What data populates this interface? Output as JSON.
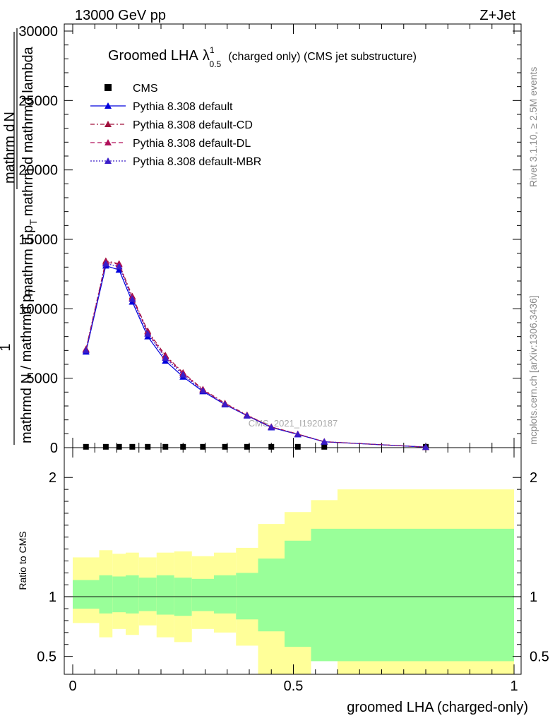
{
  "header": {
    "left": "13000 GeV pp",
    "right": "Z+Jet"
  },
  "side": {
    "rivet": "Rivet 3.1.10, ≥ 2.5M events",
    "mcplots": "mcplots.cern.ch [arXiv:1306.3436]"
  },
  "chart_data": [
    {
      "type": "line",
      "title": "Groomed LHA",
      "title_symbol": "λ",
      "title_sup": "1",
      "title_sub": "0.5",
      "title_suffix": "(charged only) (CMS jet substructure)",
      "watermark": "CMS_2021_I1920187",
      "ylabel_fraction_num": "1",
      "ylabel_denominator": "mathrmd N / mathrmd p",
      "ylabel_denominator_sub": "T",
      "ylabel_upper_num": "mathrm d",
      "ylabel_upper_num_tail": "N",
      "ylabel_upper_den": "mathrm d p",
      "ylabel_upper_den_sub": "T",
      "ylabel_upper_den_tail": "mathrm d mathrmd lambda",
      "xlim": [
        0,
        1
      ],
      "ylim": [
        0,
        30000
      ],
      "yticks": [
        {
          "v": 0,
          "label": "0"
        },
        {
          "v": 5000,
          "label": "5000"
        },
        {
          "v": 10000,
          "label": "10000"
        },
        {
          "v": 15000,
          "label": "15000"
        },
        {
          "v": 20000,
          "label": "20000"
        },
        {
          "v": 25000,
          "label": "25000"
        },
        {
          "v": 30000,
          "label": "30000"
        }
      ],
      "legend_position": "top-left",
      "x": [
        0.03,
        0.075,
        0.105,
        0.135,
        0.17,
        0.21,
        0.25,
        0.295,
        0.345,
        0.395,
        0.45,
        0.51,
        0.57,
        0.8
      ],
      "series": [
        {
          "name": "CMS",
          "marker": "square",
          "color": "#000000",
          "values": [
            60,
            60,
            60,
            60,
            60,
            60,
            60,
            60,
            60,
            60,
            60,
            60,
            60,
            60
          ]
        },
        {
          "name": "Pythia 8.308 default",
          "marker": "triangle",
          "color": "#0000dd",
          "dash": "",
          "values": [
            6900,
            13100,
            12800,
            10500,
            8000,
            6250,
            5100,
            4050,
            3100,
            2300,
            1450,
            950,
            420,
            40
          ]
        },
        {
          "name": "Pythia 8.308 default-CD",
          "marker": "triangle",
          "color": "#a0103c",
          "dash": "6,3,2,3",
          "values": [
            7100,
            13450,
            13250,
            10900,
            8400,
            6650,
            5400,
            4200,
            3200,
            2350,
            1500,
            980,
            430,
            40
          ]
        },
        {
          "name": "Pythia 8.308 default-DL",
          "marker": "triangle",
          "color": "#b0105a",
          "dash": "6,4",
          "values": [
            7050,
            13350,
            13200,
            10800,
            8300,
            6550,
            5350,
            4150,
            3150,
            2330,
            1490,
            970,
            430,
            40
          ]
        },
        {
          "name": "Pythia 8.308 default-MBR",
          "marker": "triangle",
          "color": "#3a1cc8",
          "dash": "2,2",
          "values": [
            7000,
            13250,
            13050,
            10700,
            8200,
            6450,
            5250,
            4100,
            3120,
            2310,
            1470,
            960,
            425,
            40
          ]
        }
      ]
    },
    {
      "type": "area",
      "ylabel": "Ratio to CMS",
      "xlabel": "groomed LHA (charged-only)",
      "xlim": [
        0,
        1
      ],
      "ylim": [
        0.35,
        2.25
      ],
      "xticks": [
        {
          "v": 0,
          "label": "0"
        },
        {
          "v": 0.5,
          "label": "0.5"
        },
        {
          "v": 1,
          "label": "1"
        }
      ],
      "yticks": [
        {
          "v": 0.5,
          "label": "0.5"
        },
        {
          "v": 1,
          "label": "1"
        },
        {
          "v": 2,
          "label": "2"
        }
      ],
      "reference_line": 1,
      "bins": [
        0,
        0.06,
        0.09,
        0.12,
        0.15,
        0.19,
        0.23,
        0.27,
        0.32,
        0.37,
        0.42,
        0.48,
        0.54,
        0.6,
        1.0
      ],
      "inner_lo": [
        0.9,
        0.86,
        0.87,
        0.86,
        0.88,
        0.85,
        0.84,
        0.88,
        0.86,
        0.81,
        0.71,
        0.58,
        0.46,
        0.46
      ],
      "inner_hi": [
        1.14,
        1.18,
        1.17,
        1.18,
        1.16,
        1.18,
        1.16,
        1.15,
        1.18,
        1.2,
        1.32,
        1.47,
        1.57,
        1.57
      ],
      "outer_lo": [
        0.78,
        0.66,
        0.73,
        0.68,
        0.76,
        0.66,
        0.62,
        0.73,
        0.7,
        0.59,
        0.35,
        0.35,
        0.48,
        0.35
      ],
      "outer_hi": [
        1.33,
        1.39,
        1.36,
        1.37,
        1.33,
        1.37,
        1.38,
        1.34,
        1.37,
        1.41,
        1.61,
        1.71,
        1.81,
        1.9
      ]
    }
  ]
}
